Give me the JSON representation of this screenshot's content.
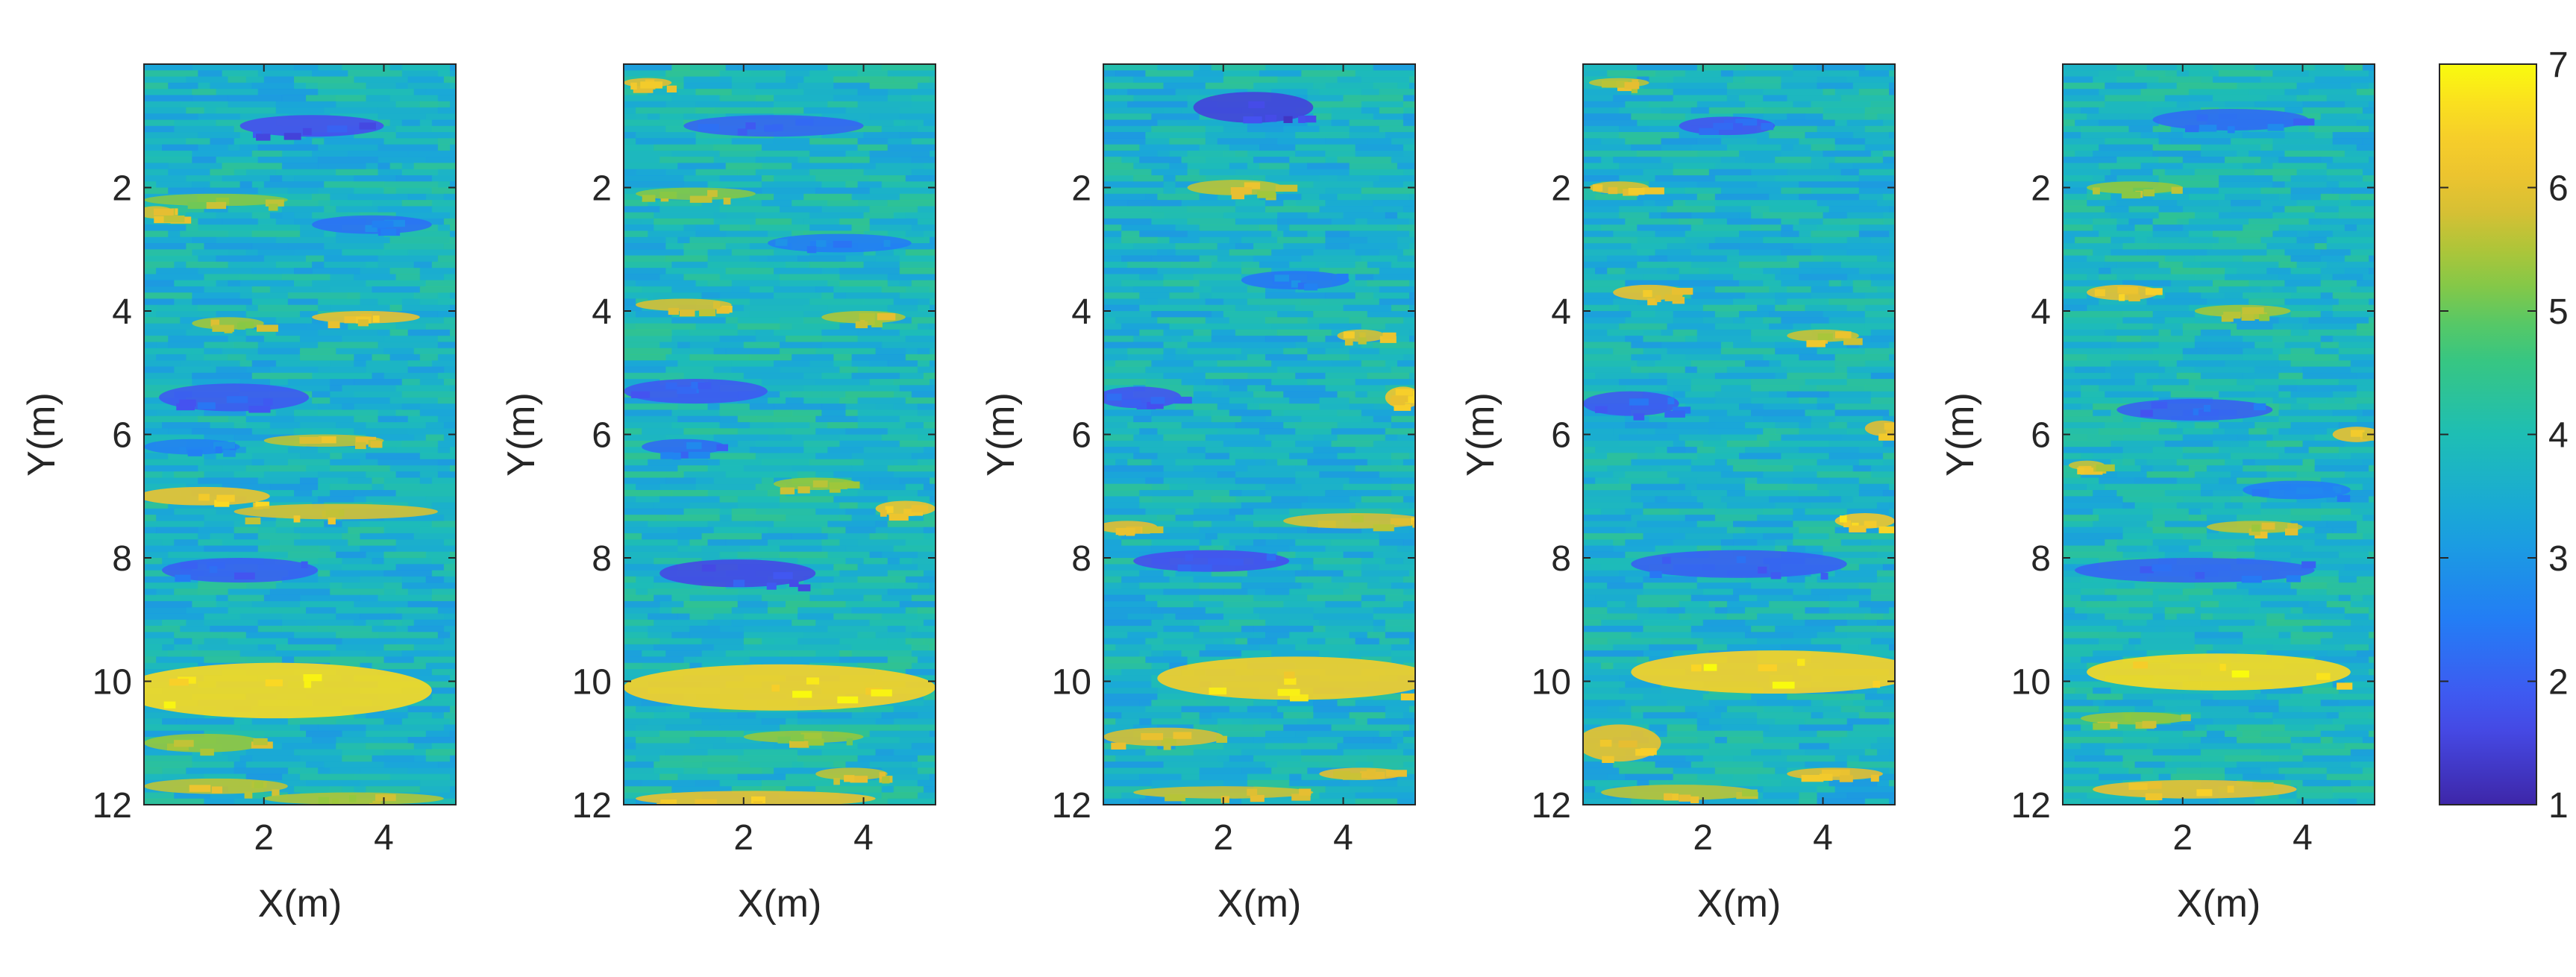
{
  "chart_data": {
    "type": "heatmap",
    "colormap": "parula",
    "colorbar": {
      "range": [
        1,
        7
      ],
      "ticks": [
        "1",
        "2",
        "3",
        "4",
        "5",
        "6",
        "7"
      ]
    },
    "panels": [
      {
        "xlabel": "X(m)",
        "ylabel": "Y(m)",
        "xlim": [
          0,
          5.2
        ],
        "ylim": [
          0,
          12
        ],
        "y_reversed": true,
        "xticks": [
          "2",
          "4"
        ],
        "yticks": [
          "2",
          "4",
          "6",
          "8",
          "10",
          "12"
        ],
        "grid": false,
        "background_value": 3.7,
        "features": [
          {
            "x": 2.8,
            "y": 1.0,
            "w": 2.4,
            "h": 0.35,
            "value": 1.7
          },
          {
            "x": 1.2,
            "y": 2.2,
            "w": 2.4,
            "h": 0.2,
            "value": 5.2
          },
          {
            "x": 0.2,
            "y": 2.4,
            "w": 0.6,
            "h": 0.2,
            "value": 5.8
          },
          {
            "x": 3.8,
            "y": 2.6,
            "w": 2.0,
            "h": 0.3,
            "value": 2.3
          },
          {
            "x": 3.7,
            "y": 4.1,
            "w": 1.8,
            "h": 0.2,
            "value": 6.0
          },
          {
            "x": 1.4,
            "y": 4.2,
            "w": 1.2,
            "h": 0.2,
            "value": 5.4
          },
          {
            "x": 1.5,
            "y": 5.4,
            "w": 2.5,
            "h": 0.45,
            "value": 1.9
          },
          {
            "x": 3.0,
            "y": 6.1,
            "w": 2.0,
            "h": 0.2,
            "value": 5.6
          },
          {
            "x": 0.8,
            "y": 6.2,
            "w": 1.6,
            "h": 0.25,
            "value": 2.6
          },
          {
            "x": 1.0,
            "y": 7.0,
            "w": 2.2,
            "h": 0.3,
            "value": 6.1
          },
          {
            "x": 3.2,
            "y": 7.25,
            "w": 3.4,
            "h": 0.25,
            "value": 5.8
          },
          {
            "x": 1.6,
            "y": 8.2,
            "w": 2.6,
            "h": 0.4,
            "value": 2.0
          },
          {
            "x": 2.2,
            "y": 10.15,
            "w": 5.2,
            "h": 0.9,
            "value": 6.6
          },
          {
            "x": 1.0,
            "y": 11.0,
            "w": 2.0,
            "h": 0.3,
            "value": 5.3
          },
          {
            "x": 1.2,
            "y": 11.7,
            "w": 2.4,
            "h": 0.25,
            "value": 5.6
          },
          {
            "x": 3.5,
            "y": 11.9,
            "w": 3.0,
            "h": 0.2,
            "value": 5.5
          }
        ]
      },
      {
        "xlabel": "X(m)",
        "ylabel": "Y(m)",
        "xlim": [
          0,
          5.2
        ],
        "ylim": [
          0,
          12
        ],
        "y_reversed": true,
        "xticks": [
          "2",
          "4"
        ],
        "yticks": [
          "2",
          "4",
          "6",
          "8",
          "10",
          "12"
        ],
        "grid": false,
        "background_value": 3.8,
        "features": [
          {
            "x": 2.5,
            "y": 1.0,
            "w": 3.0,
            "h": 0.35,
            "value": 2.1
          },
          {
            "x": 0.4,
            "y": 0.3,
            "w": 0.8,
            "h": 0.15,
            "value": 5.9
          },
          {
            "x": 1.2,
            "y": 2.1,
            "w": 2.0,
            "h": 0.2,
            "value": 5.2
          },
          {
            "x": 3.6,
            "y": 2.9,
            "w": 2.4,
            "h": 0.3,
            "value": 2.5
          },
          {
            "x": 1.0,
            "y": 3.9,
            "w": 1.6,
            "h": 0.2,
            "value": 5.8
          },
          {
            "x": 4.0,
            "y": 4.1,
            "w": 1.4,
            "h": 0.2,
            "value": 5.5
          },
          {
            "x": 1.2,
            "y": 5.3,
            "w": 2.4,
            "h": 0.4,
            "value": 1.9
          },
          {
            "x": 1.0,
            "y": 6.2,
            "w": 1.4,
            "h": 0.25,
            "value": 2.2
          },
          {
            "x": 4.7,
            "y": 7.2,
            "w": 1.0,
            "h": 0.25,
            "value": 6.1
          },
          {
            "x": 3.2,
            "y": 6.8,
            "w": 1.4,
            "h": 0.2,
            "value": 5.3
          },
          {
            "x": 1.9,
            "y": 8.25,
            "w": 2.6,
            "h": 0.45,
            "value": 1.6
          },
          {
            "x": 2.6,
            "y": 10.1,
            "w": 5.2,
            "h": 0.75,
            "value": 6.5
          },
          {
            "x": 3.0,
            "y": 10.9,
            "w": 2.0,
            "h": 0.2,
            "value": 5.3
          },
          {
            "x": 3.8,
            "y": 11.5,
            "w": 1.2,
            "h": 0.2,
            "value": 5.6
          },
          {
            "x": 2.2,
            "y": 11.9,
            "w": 4.0,
            "h": 0.25,
            "value": 6.0
          }
        ]
      },
      {
        "xlabel": "X(m)",
        "ylabel": "Y(m)",
        "xlim": [
          0,
          5.2
        ],
        "ylim": [
          0,
          12
        ],
        "y_reversed": true,
        "xticks": [
          "2",
          "4"
        ],
        "yticks": [
          "2",
          "4",
          "6",
          "8",
          "10",
          "12"
        ],
        "grid": false,
        "background_value": 3.7,
        "features": [
          {
            "x": 2.5,
            "y": 0.7,
            "w": 2.0,
            "h": 0.5,
            "value": 1.5
          },
          {
            "x": 2.2,
            "y": 2.0,
            "w": 1.6,
            "h": 0.25,
            "value": 5.6
          },
          {
            "x": 3.2,
            "y": 3.5,
            "w": 1.8,
            "h": 0.3,
            "value": 2.4
          },
          {
            "x": 4.3,
            "y": 4.4,
            "w": 0.8,
            "h": 0.2,
            "value": 5.8
          },
          {
            "x": 0.6,
            "y": 5.4,
            "w": 1.4,
            "h": 0.35,
            "value": 1.8
          },
          {
            "x": 5.0,
            "y": 5.4,
            "w": 0.6,
            "h": 0.35,
            "value": 6.2
          },
          {
            "x": 4.2,
            "y": 7.4,
            "w": 2.4,
            "h": 0.25,
            "value": 5.8
          },
          {
            "x": 0.4,
            "y": 7.5,
            "w": 1.0,
            "h": 0.2,
            "value": 5.9
          },
          {
            "x": 1.8,
            "y": 8.05,
            "w": 2.6,
            "h": 0.35,
            "value": 1.7
          },
          {
            "x": 3.2,
            "y": 9.95,
            "w": 4.6,
            "h": 0.7,
            "value": 6.4
          },
          {
            "x": 1.0,
            "y": 10.9,
            "w": 2.0,
            "h": 0.3,
            "value": 5.8
          },
          {
            "x": 4.3,
            "y": 11.5,
            "w": 1.4,
            "h": 0.2,
            "value": 5.9
          },
          {
            "x": 2.0,
            "y": 11.8,
            "w": 3.0,
            "h": 0.2,
            "value": 5.7
          }
        ]
      },
      {
        "xlabel": "X(m)",
        "ylabel": "Y(m)",
        "xlim": [
          0,
          5.2
        ],
        "ylim": [
          0,
          12
        ],
        "y_reversed": true,
        "xticks": [
          "2",
          "4"
        ],
        "yticks": [
          "2",
          "4",
          "6",
          "8",
          "10",
          "12"
        ],
        "grid": false,
        "background_value": 3.7,
        "features": [
          {
            "x": 2.4,
            "y": 1.0,
            "w": 1.6,
            "h": 0.3,
            "value": 1.8
          },
          {
            "x": 0.6,
            "y": 0.3,
            "w": 1.0,
            "h": 0.15,
            "value": 5.6
          },
          {
            "x": 0.6,
            "y": 2.0,
            "w": 1.0,
            "h": 0.2,
            "value": 5.8
          },
          {
            "x": 1.1,
            "y": 3.7,
            "w": 1.2,
            "h": 0.25,
            "value": 6.0
          },
          {
            "x": 4.0,
            "y": 4.4,
            "w": 1.2,
            "h": 0.2,
            "value": 5.7
          },
          {
            "x": 0.8,
            "y": 5.5,
            "w": 1.6,
            "h": 0.4,
            "value": 1.9
          },
          {
            "x": 5.0,
            "y": 5.9,
            "w": 0.6,
            "h": 0.25,
            "value": 5.9
          },
          {
            "x": 4.7,
            "y": 7.4,
            "w": 1.0,
            "h": 0.25,
            "value": 6.2
          },
          {
            "x": 2.6,
            "y": 8.1,
            "w": 3.6,
            "h": 0.45,
            "value": 2.0
          },
          {
            "x": 3.2,
            "y": 9.85,
            "w": 4.8,
            "h": 0.7,
            "value": 6.5
          },
          {
            "x": 0.6,
            "y": 11.0,
            "w": 1.4,
            "h": 0.6,
            "value": 6.0
          },
          {
            "x": 4.2,
            "y": 11.5,
            "w": 1.6,
            "h": 0.2,
            "value": 5.9
          },
          {
            "x": 1.6,
            "y": 11.8,
            "w": 2.6,
            "h": 0.25,
            "value": 5.6
          }
        ]
      },
      {
        "xlabel": "X(m)",
        "ylabel": "Y(m)",
        "xlim": [
          0,
          5.2
        ],
        "ylim": [
          0,
          12
        ],
        "y_reversed": true,
        "xticks": [
          "2",
          "4"
        ],
        "yticks": [
          "2",
          "4",
          "6",
          "8",
          "10",
          "12"
        ],
        "grid": false,
        "background_value": 3.8,
        "features": [
          {
            "x": 2.8,
            "y": 0.9,
            "w": 2.6,
            "h": 0.35,
            "value": 2.2
          },
          {
            "x": 1.2,
            "y": 2.0,
            "w": 1.6,
            "h": 0.2,
            "value": 5.3
          },
          {
            "x": 1.0,
            "y": 3.7,
            "w": 1.2,
            "h": 0.25,
            "value": 6.0
          },
          {
            "x": 3.0,
            "y": 4.0,
            "w": 1.6,
            "h": 0.2,
            "value": 5.4
          },
          {
            "x": 2.2,
            "y": 5.6,
            "w": 2.6,
            "h": 0.35,
            "value": 2.0
          },
          {
            "x": 4.9,
            "y": 6.0,
            "w": 0.8,
            "h": 0.25,
            "value": 6.0
          },
          {
            "x": 0.4,
            "y": 6.5,
            "w": 0.6,
            "h": 0.15,
            "value": 5.7
          },
          {
            "x": 3.9,
            "y": 6.9,
            "w": 1.8,
            "h": 0.3,
            "value": 2.5
          },
          {
            "x": 3.2,
            "y": 7.5,
            "w": 1.6,
            "h": 0.2,
            "value": 5.6
          },
          {
            "x": 2.2,
            "y": 8.2,
            "w": 4.0,
            "h": 0.4,
            "value": 2.1
          },
          {
            "x": 2.6,
            "y": 9.85,
            "w": 4.4,
            "h": 0.6,
            "value": 6.6
          },
          {
            "x": 1.2,
            "y": 10.6,
            "w": 1.8,
            "h": 0.2,
            "value": 5.3
          },
          {
            "x": 2.2,
            "y": 11.75,
            "w": 3.4,
            "h": 0.3,
            "value": 6.0
          }
        ]
      }
    ]
  }
}
